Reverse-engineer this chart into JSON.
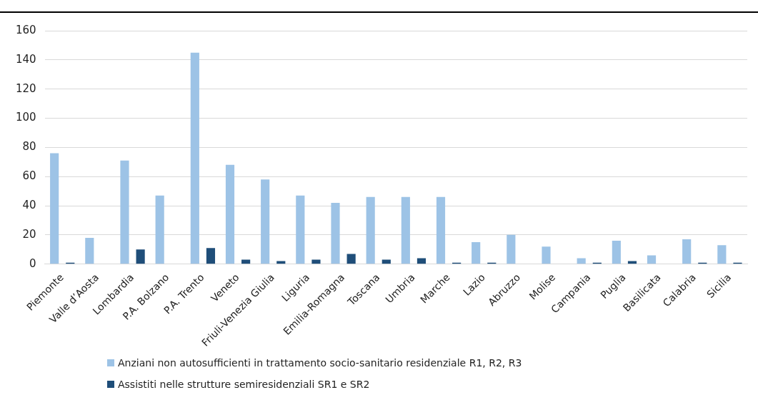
{
  "chart_data": {
    "type": "bar",
    "categories": [
      "Piemonte",
      "Valle d’Aosta",
      "Lombardia",
      "P.A. Bolzano",
      "P.A. Trento",
      "Veneto",
      "Friuli-Venezia Giulia",
      "Liguria",
      "Emilia-Romagna",
      "Toscana",
      "Umbria",
      "Marche",
      "Lazio",
      "Abruzzo",
      "Molise",
      "Campania",
      "Puglia",
      "Basilicata",
      "Calabria",
      "Sicilia"
    ],
    "series": [
      {
        "name": "Anziani non autosufficienti in trattamento socio-sanitario residenziale R1, R2, R3",
        "color": "#9dc3e6",
        "values": [
          76,
          18,
          71,
          47,
          145,
          68,
          58,
          47,
          42,
          46,
          46,
          46,
          15,
          20,
          12,
          4,
          16,
          6,
          17,
          13
        ]
      },
      {
        "name": "Assistiti nelle strutture semiresidenziali SR1 e SR2",
        "color": "#1f4e79",
        "values": [
          1,
          null,
          10,
          null,
          11,
          3,
          2,
          3,
          7,
          3,
          4,
          1,
          1,
          null,
          null,
          1,
          2,
          null,
          1,
          1
        ]
      }
    ],
    "ylim": [
      0,
      160
    ],
    "yticks": [
      0,
      20,
      40,
      60,
      80,
      100,
      120,
      140,
      160
    ],
    "grid": "y",
    "legend": "bottom"
  }
}
